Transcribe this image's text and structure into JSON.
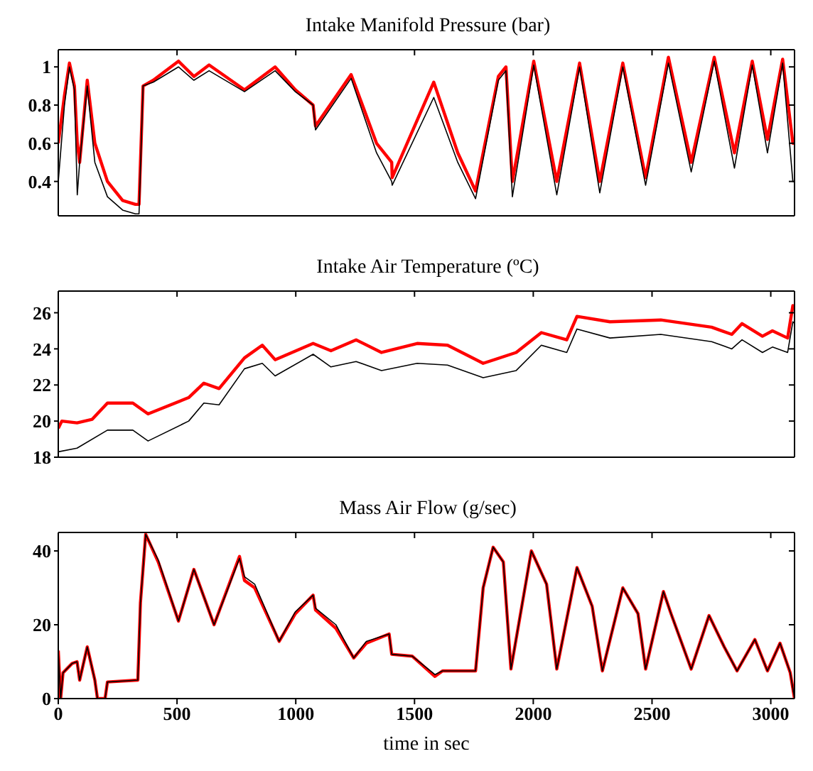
{
  "chart_data": [
    {
      "type": "line",
      "title": "Intake Manifold Pressure (bar)",
      "xlim": [
        0,
        3100
      ],
      "xticks": [
        0,
        500,
        1000,
        1500,
        2000,
        2500,
        3000
      ],
      "ylim": [
        0.22,
        1.09
      ],
      "yticks": [
        0.4,
        0.6,
        0.8,
        1
      ],
      "tick_labels": "y",
      "marker": "none",
      "line_style": "solid",
      "series": [
        {
          "color": "#000000",
          "x": [
            0,
            26,
            47,
            68,
            80,
            90,
            122,
            154,
            207,
            271,
            325,
            340,
            357,
            400,
            506,
            571,
            635,
            784,
            913,
            998,
            1073,
            1083,
            1233,
            1340,
            1404,
            1406,
            1581,
            1682,
            1757,
            1853,
            1885,
            1912,
            2002,
            2099,
            2195,
            2280,
            2377,
            2473,
            2569,
            2665,
            2762,
            2847,
            2922,
            2986,
            3050,
            3093,
            3100
          ],
          "values": [
            0.4,
            0.8,
            1.0,
            0.88,
            0.33,
            0.5,
            0.9,
            0.5,
            0.32,
            0.25,
            0.23,
            0.23,
            0.9,
            0.92,
            1.0,
            0.93,
            0.98,
            0.87,
            0.98,
            0.87,
            0.8,
            0.67,
            0.94,
            0.55,
            0.4,
            0.38,
            0.84,
            0.5,
            0.31,
            0.93,
            0.98,
            0.32,
            1.01,
            0.33,
            1.0,
            0.34,
            1.0,
            0.38,
            1.02,
            0.45,
            1.03,
            0.47,
            1.01,
            0.55,
            1.02,
            0.4,
            0.4
          ]
        },
        {
          "color": "#ff0000",
          "x": [
            0,
            26,
            47,
            68,
            80,
            90,
            122,
            154,
            207,
            271,
            325,
            340,
            357,
            400,
            506,
            571,
            635,
            784,
            913,
            998,
            1073,
            1083,
            1233,
            1340,
            1404,
            1406,
            1581,
            1682,
            1757,
            1853,
            1885,
            1912,
            2002,
            2099,
            2195,
            2280,
            2377,
            2473,
            2569,
            2665,
            2762,
            2847,
            2922,
            2986,
            3050,
            3093,
            3100
          ],
          "values": [
            0.6,
            0.85,
            1.02,
            0.9,
            0.6,
            0.5,
            0.93,
            0.6,
            0.4,
            0.3,
            0.28,
            0.28,
            0.9,
            0.93,
            1.03,
            0.95,
            1.01,
            0.88,
            1.0,
            0.88,
            0.8,
            0.69,
            0.96,
            0.6,
            0.5,
            0.42,
            0.92,
            0.55,
            0.35,
            0.95,
            1.0,
            0.4,
            1.03,
            0.4,
            1.02,
            0.4,
            1.02,
            0.42,
            1.05,
            0.5,
            1.05,
            0.55,
            1.03,
            0.62,
            1.04,
            0.6,
            0.6
          ]
        }
      ]
    },
    {
      "type": "line",
      "title": "Intake Air Temperature (ºC)",
      "xlim": [
        0,
        3100
      ],
      "xticks": [
        0,
        500,
        1000,
        1500,
        2000,
        2500,
        3000
      ],
      "ylim": [
        18,
        27.2
      ],
      "yticks": [
        18,
        20,
        22,
        24,
        26
      ],
      "tick_labels": "y",
      "marker": "none",
      "line_style": "solid",
      "series": [
        {
          "color": "#000000",
          "x": [
            0,
            79,
            207,
            314,
            378,
            549,
            613,
            677,
            784,
            859,
            913,
            1073,
            1148,
            1254,
            1361,
            1511,
            1639,
            1789,
            1928,
            2034,
            2141,
            2184,
            2323,
            2537,
            2751,
            2836,
            2879,
            2965,
            3007,
            3071,
            3093,
            3100
          ],
          "values": [
            18.3,
            18.5,
            19.5,
            19.5,
            18.9,
            20,
            21,
            20.9,
            22.9,
            23.2,
            22.5,
            23.7,
            23,
            23.3,
            22.8,
            23.2,
            23.1,
            22.4,
            22.8,
            24.2,
            23.8,
            25.1,
            24.6,
            24.8,
            24.4,
            24,
            24.5,
            23.8,
            24.1,
            23.8,
            25.5,
            25.4
          ]
        },
        {
          "color": "#ff0000",
          "x": [
            0,
            15,
            79,
            143,
            207,
            314,
            378,
            549,
            613,
            677,
            784,
            859,
            913,
            1073,
            1148,
            1254,
            1361,
            1511,
            1639,
            1789,
            1928,
            2034,
            2141,
            2184,
            2323,
            2537,
            2751,
            2836,
            2879,
            2965,
            3007,
            3071,
            3093,
            3100
          ],
          "values": [
            19.6,
            20,
            19.9,
            20.1,
            21,
            21,
            20.4,
            21.3,
            22.1,
            21.8,
            23.5,
            24.2,
            23.4,
            24.3,
            23.9,
            24.5,
            23.8,
            24.3,
            24.2,
            23.2,
            23.8,
            24.9,
            24.5,
            25.8,
            25.5,
            25.6,
            25.2,
            24.8,
            25.4,
            24.7,
            25,
            24.6,
            26.4,
            26.2
          ]
        }
      ]
    },
    {
      "type": "line",
      "title": "Mass Air Flow (g/sec)",
      "xlabel": "time in sec",
      "xlim": [
        0,
        3100
      ],
      "xticks": [
        0,
        500,
        1000,
        1500,
        2000,
        2500,
        3000
      ],
      "ylim": [
        0,
        45
      ],
      "yticks": [
        0,
        20,
        40
      ],
      "marker": "none",
      "line_style": "solid",
      "series": [
        {
          "color": "#000000",
          "x": [
            0,
            10,
            20,
            58,
            79,
            90,
            122,
            154,
            165,
            197,
            207,
            335,
            346,
            368,
            421,
            506,
            571,
            656,
            763,
            784,
            827,
            930,
            998,
            1073,
            1083,
            1169,
            1244,
            1297,
            1393,
            1404,
            1490,
            1586,
            1618,
            1757,
            1789,
            1831,
            1874,
            1906,
            1992,
            2056,
            2099,
            2184,
            2248,
            2291,
            2377,
            2441,
            2473,
            2548,
            2580,
            2665,
            2740,
            2804,
            2858,
            2933,
            2986,
            3039,
            3082,
            3100
          ],
          "values": [
            13,
            0,
            7,
            9.5,
            10,
            5,
            14,
            5,
            0,
            0,
            4.5,
            5,
            26,
            44.5,
            37.5,
            21,
            35,
            20,
            38,
            33,
            31,
            15.5,
            23.5,
            28,
            24.5,
            20,
            11,
            15.5,
            17.5,
            12,
            11.5,
            6.5,
            7.5,
            7.5,
            30,
            41,
            37,
            8,
            40,
            31,
            8,
            35.5,
            25,
            7.5,
            30,
            23,
            8,
            29,
            23,
            8,
            22.5,
            14,
            7.5,
            16,
            7.5,
            15,
            7,
            0
          ]
        },
        {
          "color": "#ff0000",
          "x": [
            0,
            10,
            20,
            58,
            79,
            90,
            122,
            154,
            165,
            197,
            207,
            335,
            346,
            368,
            421,
            506,
            571,
            656,
            763,
            784,
            827,
            930,
            998,
            1073,
            1083,
            1169,
            1244,
            1297,
            1393,
            1404,
            1490,
            1586,
            1618,
            1757,
            1789,
            1831,
            1874,
            1906,
            1992,
            2056,
            2099,
            2184,
            2248,
            2291,
            2377,
            2441,
            2473,
            2548,
            2580,
            2665,
            2740,
            2804,
            2858,
            2933,
            2986,
            3039,
            3082,
            3100
          ],
          "values": [
            13,
            0,
            7,
            9.5,
            10,
            5,
            14,
            5,
            0,
            0,
            4.5,
            5,
            26,
            44.5,
            37,
            21,
            35,
            20,
            38.5,
            32,
            30,
            15.5,
            23,
            28,
            24,
            19,
            11,
            15,
            17.5,
            12,
            11.5,
            6,
            7.5,
            7.5,
            30,
            41,
            37,
            8,
            40,
            31,
            8,
            35.5,
            25,
            7.5,
            30,
            23,
            8,
            29,
            23,
            8,
            22.5,
            14,
            7.5,
            16,
            7.5,
            15,
            7,
            0
          ]
        }
      ]
    }
  ]
}
